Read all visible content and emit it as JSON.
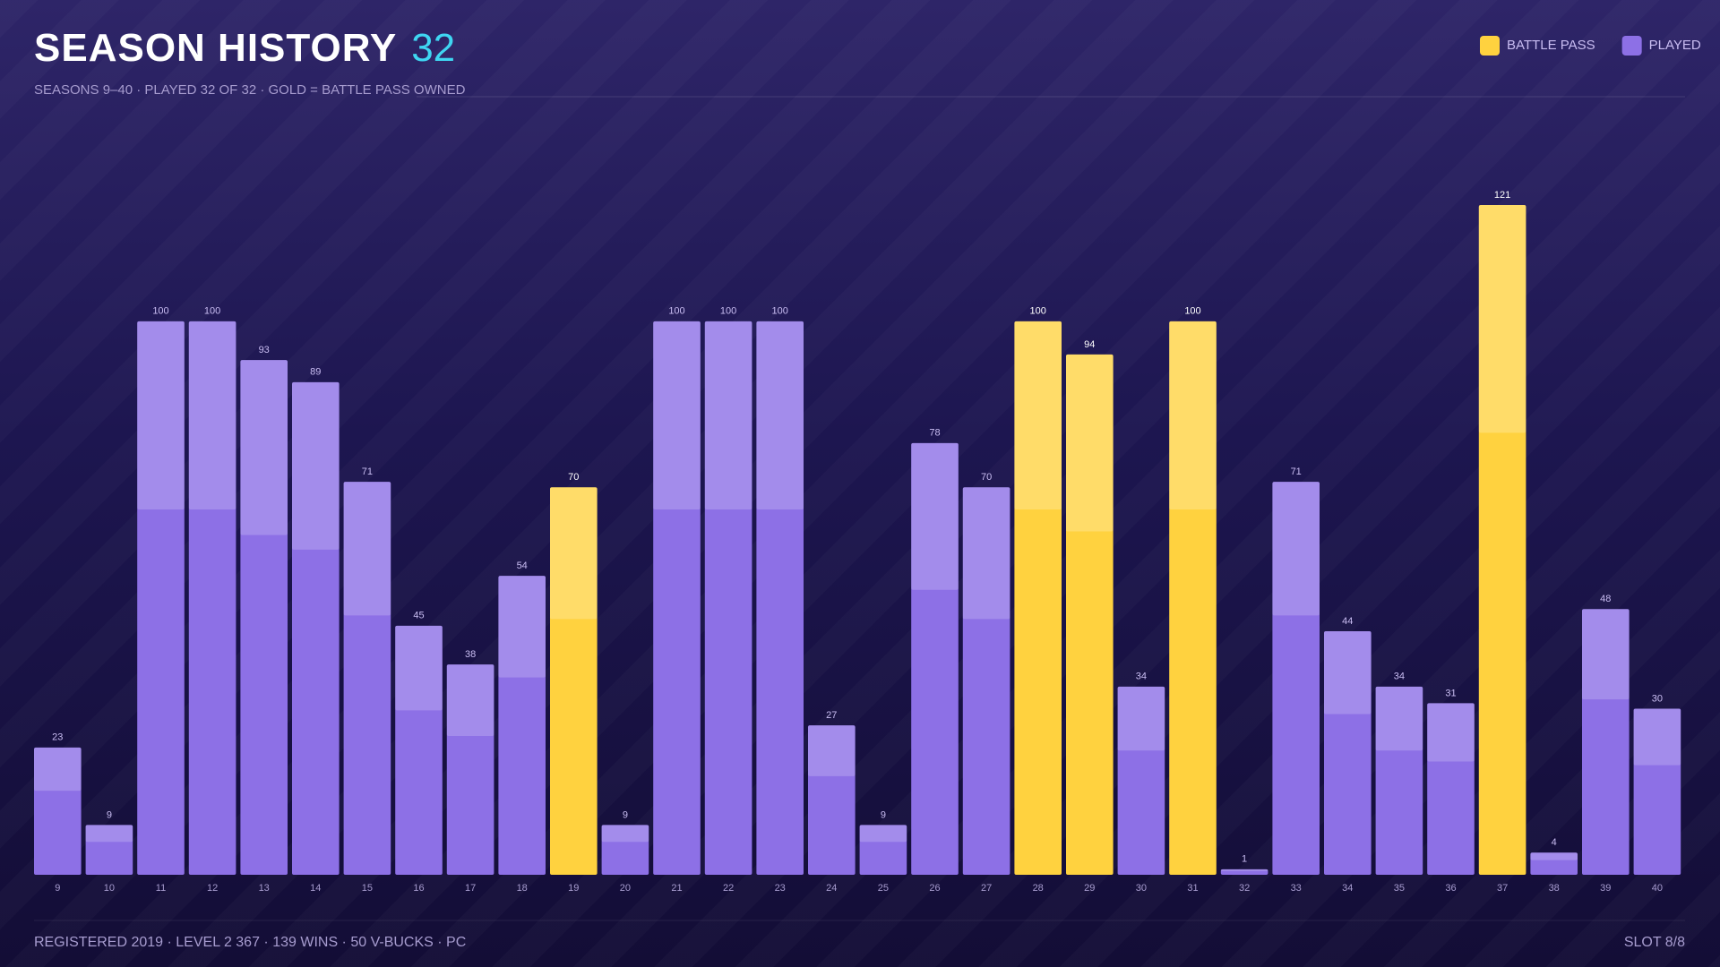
{
  "chart_data": {
    "type": "bar",
    "title": "SEASON HISTORY",
    "title_count": "32",
    "subtitle": "SEASONS 9–40 · PLAYED 32 OF 32 · GOLD = BATTLE PASS OWNED",
    "footer": "REGISTERED 2019 · LEVEL 2 367 · 139 WINS · 50 V-BUCKS · PC",
    "slot": "SLOT 8/8",
    "categories": [
      "9",
      "10",
      "11",
      "12",
      "13",
      "14",
      "15",
      "16",
      "17",
      "18",
      "19",
      "20",
      "21",
      "22",
      "23",
      "24",
      "25",
      "26",
      "27",
      "28",
      "29",
      "30",
      "31",
      "32",
      "33",
      "34",
      "35",
      "36",
      "37",
      "38",
      "39",
      "40"
    ],
    "series": [
      {
        "name": "BATTLE PASS",
        "color": "#ffd23f",
        "values": [
          null,
          null,
          null,
          null,
          null,
          null,
          null,
          null,
          null,
          null,
          70,
          null,
          null,
          null,
          null,
          null,
          null,
          null,
          null,
          100,
          94,
          null,
          100,
          null,
          null,
          null,
          null,
          null,
          121,
          null,
          null,
          null
        ]
      },
      {
        "name": "PLAYED",
        "color": "#8d70e6",
        "values": [
          23,
          9,
          100,
          100,
          93,
          89,
          71,
          45,
          38,
          54,
          null,
          9,
          100,
          100,
          100,
          27,
          9,
          78,
          70,
          null,
          null,
          34,
          null,
          1,
          71,
          44,
          34,
          31,
          null,
          4,
          48,
          30
        ]
      }
    ]
  }
}
